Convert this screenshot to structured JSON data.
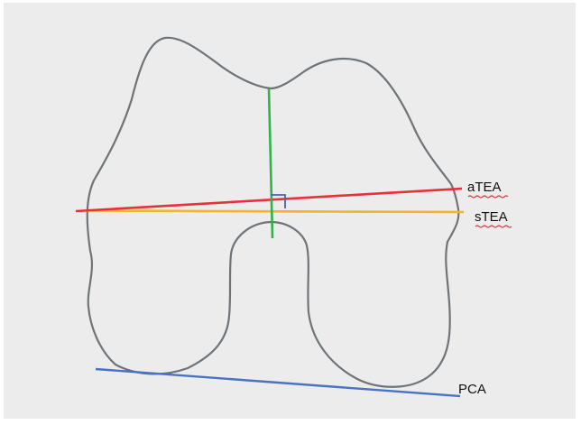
{
  "labels": {
    "atea": "aTEA",
    "stea": "sTEA",
    "pca": "PCA"
  },
  "colors": {
    "background": "#ececec",
    "outline": "#6f7478",
    "atea": "#e8303a",
    "stea": "#f5b22b",
    "pca": "#4a72c4",
    "vertical_axis": "#2fb24a",
    "right_angle_marker": "#4a5fc0",
    "spellcheck_underline": "#e0303a"
  }
}
